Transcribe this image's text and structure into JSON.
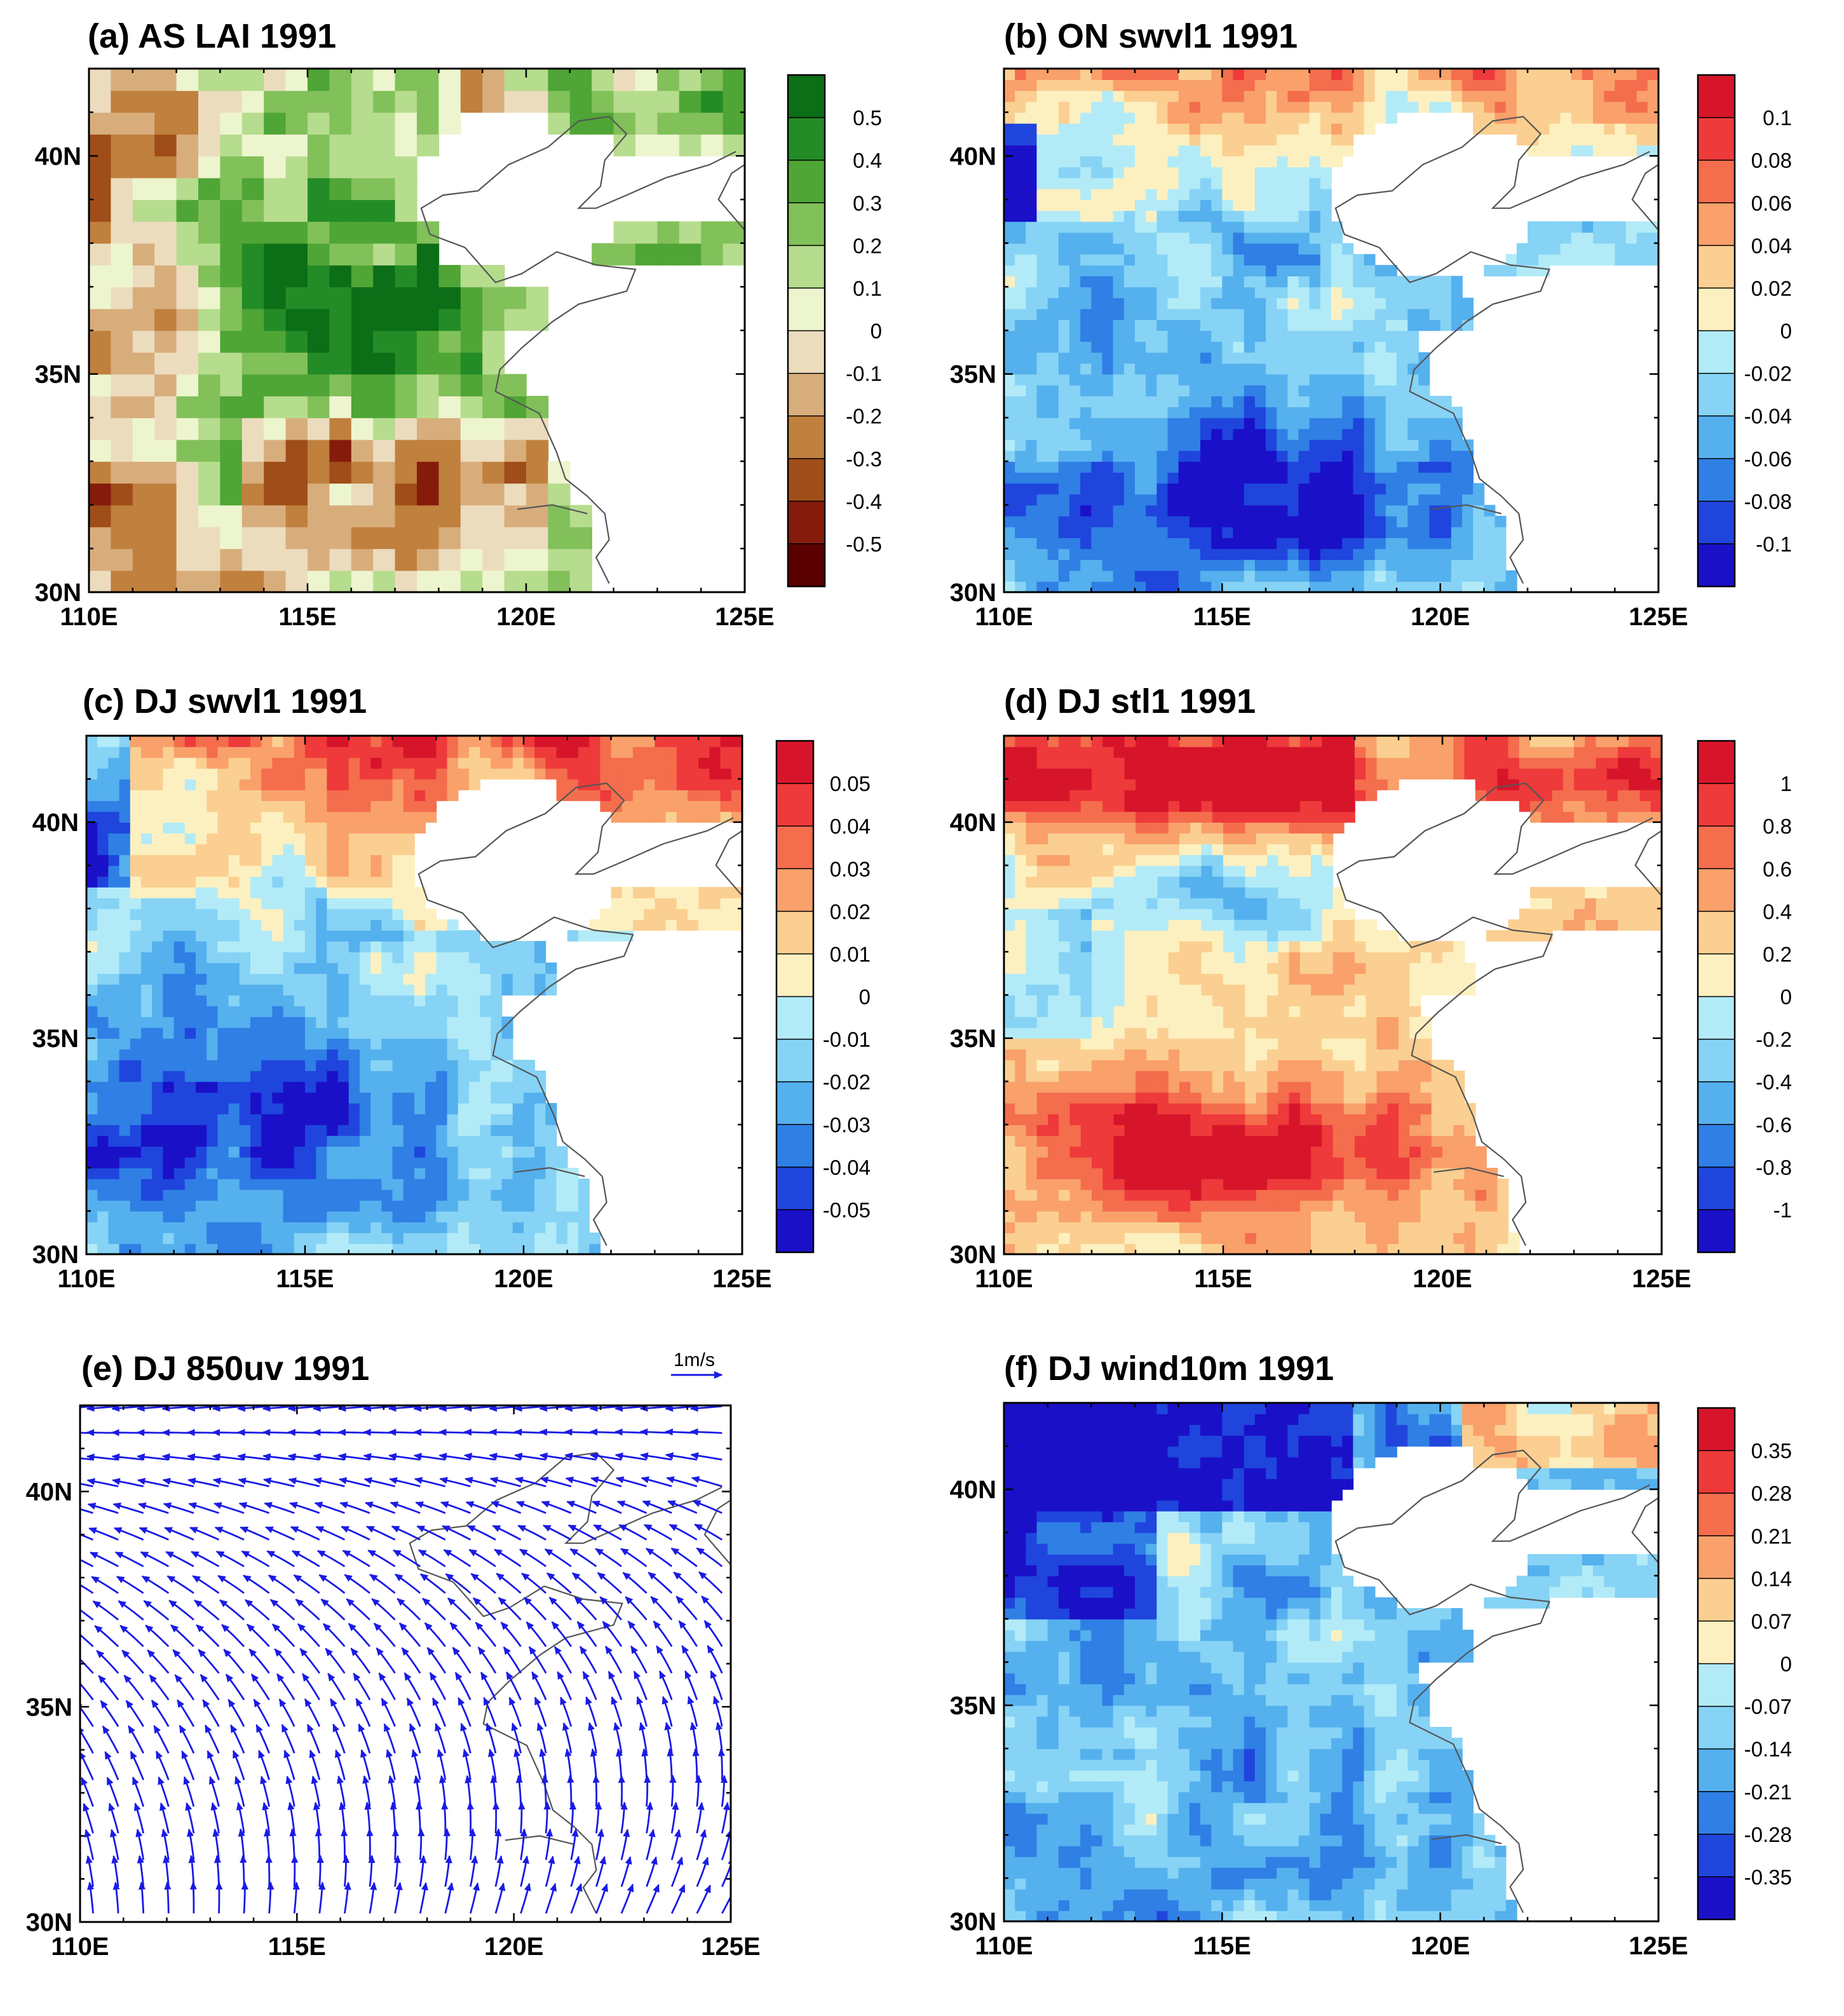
{
  "chart_data": [
    {
      "id": "a",
      "type": "heatmap",
      "title": "(a) AS LAI 1991",
      "xlim": [
        110,
        125
      ],
      "ylim": [
        30,
        42
      ],
      "x_ticks": [
        "110E",
        "115E",
        "120E",
        "125E"
      ],
      "x_tick_values": [
        110,
        115,
        120,
        125
      ],
      "y_ticks": [
        "30N",
        "35N",
        "40N"
      ],
      "y_tick_values": [
        30,
        35,
        40
      ],
      "colorbar_labels": [
        "0.5",
        "0.4",
        "0.3",
        "0.2",
        "0.1",
        "0",
        "-0.1",
        "-0.2",
        "-0.3",
        "-0.4",
        "-0.5"
      ],
      "colorbar_colors": [
        "#0c6e17",
        "#248c26",
        "#4fa535",
        "#82c05a",
        "#b6dc8e",
        "#edf5cf",
        "#ecdcbe",
        "#d8ad7c",
        "#c0803e",
        "#9f4d19",
        "#851b0b",
        "#5a0000"
      ],
      "pattern": "lai"
    },
    {
      "id": "b",
      "type": "heatmap",
      "title": "(b) ON swvl1 1991",
      "xlim": [
        110,
        125
      ],
      "ylim": [
        30,
        42
      ],
      "x_ticks": [
        "110E",
        "115E",
        "120E",
        "125E"
      ],
      "x_tick_values": [
        110,
        115,
        120,
        125
      ],
      "y_ticks": [
        "30N",
        "35N",
        "40N"
      ],
      "y_tick_values": [
        30,
        35,
        40
      ],
      "colorbar_labels": [
        "0.1",
        "0.08",
        "0.06",
        "0.04",
        "0.02",
        "0",
        "-0.02",
        "-0.04",
        "-0.06",
        "-0.08",
        "-0.1"
      ],
      "colorbar_colors": [
        "#d7152a",
        "#ee3a3a",
        "#f46d4d",
        "#f9a06b",
        "#fbcf91",
        "#fdf0c0",
        "#b2ebf7",
        "#86d3f5",
        "#55b0ee",
        "#2f7fe5",
        "#1f45dd",
        "#1a10c8"
      ],
      "pattern": "swvl_on"
    },
    {
      "id": "c",
      "type": "heatmap",
      "title": "(c) DJ swvl1 1991",
      "xlim": [
        110,
        125
      ],
      "ylim": [
        30,
        42
      ],
      "x_ticks": [
        "110E",
        "115E",
        "120E",
        "125E"
      ],
      "x_tick_values": [
        110,
        115,
        120,
        125
      ],
      "y_ticks": [
        "30N",
        "35N",
        "40N"
      ],
      "y_tick_values": [
        30,
        35,
        40
      ],
      "colorbar_labels": [
        "0.05",
        "0.04",
        "0.03",
        "0.02",
        "0.01",
        "0",
        "-0.01",
        "-0.02",
        "-0.03",
        "-0.04",
        "-0.05"
      ],
      "colorbar_colors": [
        "#d7152a",
        "#ee3a3a",
        "#f46d4d",
        "#f9a06b",
        "#fbcf91",
        "#fdf0c0",
        "#b2ebf7",
        "#86d3f5",
        "#55b0ee",
        "#2f7fe5",
        "#1f45dd",
        "#1a10c8"
      ],
      "pattern": "swvl_dj"
    },
    {
      "id": "d",
      "type": "heatmap",
      "title": "(d) DJ stl1 1991",
      "xlim": [
        110,
        125
      ],
      "ylim": [
        30,
        42
      ],
      "x_ticks": [
        "110E",
        "115E",
        "120E",
        "125E"
      ],
      "x_tick_values": [
        110,
        115,
        120,
        125
      ],
      "y_ticks": [
        "30N",
        "35N",
        "40N"
      ],
      "y_tick_values": [
        30,
        35,
        40
      ],
      "colorbar_labels": [
        "1",
        "0.8",
        "0.6",
        "0.4",
        "0.2",
        "0",
        "-0.2",
        "-0.4",
        "-0.6",
        "-0.8",
        "-1"
      ],
      "colorbar_colors": [
        "#d7152a",
        "#ee3a3a",
        "#f46d4d",
        "#f9a06b",
        "#fbcf91",
        "#fdf0c0",
        "#b2ebf7",
        "#86d3f5",
        "#55b0ee",
        "#2f7fe5",
        "#1f45dd",
        "#1a10c8"
      ],
      "pattern": "stl"
    },
    {
      "id": "e",
      "type": "vector",
      "title": "(e) DJ 850uv 1991",
      "xlim": [
        110,
        125
      ],
      "ylim": [
        30,
        42
      ],
      "x_ticks": [
        "110E",
        "115E",
        "120E",
        "125E"
      ],
      "x_tick_values": [
        110,
        115,
        120,
        125
      ],
      "y_ticks": [
        "30N",
        "35N",
        "40N"
      ],
      "y_tick_values": [
        30,
        35,
        40
      ],
      "reference_vector": "1m/s",
      "pattern": "wind"
    },
    {
      "id": "f",
      "type": "heatmap",
      "title": "(f) DJ wind10m 1991",
      "xlim": [
        110,
        125
      ],
      "ylim": [
        30,
        42
      ],
      "x_ticks": [
        "110E",
        "115E",
        "120E",
        "125E"
      ],
      "x_tick_values": [
        110,
        115,
        120,
        125
      ],
      "y_ticks": [
        "30N",
        "35N",
        "40N"
      ],
      "y_tick_values": [
        30,
        35,
        40
      ],
      "colorbar_labels": [
        "0.35",
        "0.28",
        "0.21",
        "0.14",
        "0.07",
        "0",
        "-0.07",
        "-0.14",
        "-0.21",
        "-0.28",
        "-0.35"
      ],
      "colorbar_colors": [
        "#d7152a",
        "#ee3a3a",
        "#f46d4d",
        "#f9a06b",
        "#fbcf91",
        "#fdf0c0",
        "#b2ebf7",
        "#86d3f5",
        "#55b0ee",
        "#2f7fe5",
        "#1f45dd",
        "#1a10c8"
      ],
      "pattern": "wind10"
    }
  ]
}
